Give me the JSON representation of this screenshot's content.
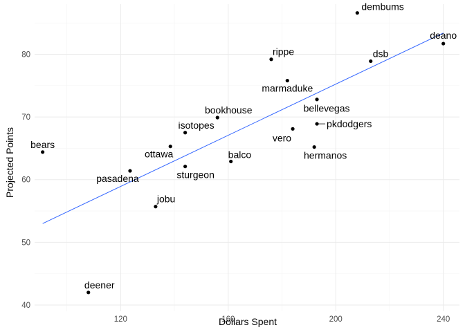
{
  "chart_data": {
    "type": "scatter",
    "title": "",
    "xlabel": "Dollars Spent",
    "ylabel": "Projected Points",
    "xlim": [
      88,
      246
    ],
    "ylim": [
      39,
      88
    ],
    "x_ticks": [
      120,
      160,
      200,
      240
    ],
    "y_ticks": [
      40,
      50,
      60,
      70,
      80
    ],
    "grid": true,
    "legend": "none",
    "trend_line": {
      "x": [
        91,
        240
      ],
      "y": [
        53.0,
        83.4
      ],
      "color": "#3366ff"
    },
    "points": [
      {
        "label": "dembums",
        "x": 208,
        "y": 86.6
      },
      {
        "label": "deano",
        "x": 240,
        "y": 81.7
      },
      {
        "label": "dsb",
        "x": 213,
        "y": 78.9
      },
      {
        "label": "rippe",
        "x": 176,
        "y": 79.2
      },
      {
        "label": "marmaduke",
        "x": 182,
        "y": 75.8
      },
      {
        "label": "bellevegas",
        "x": 193,
        "y": 72.8
      },
      {
        "label": "bookhouse",
        "x": 156,
        "y": 69.9
      },
      {
        "label": "pkdodgers",
        "x": 193,
        "y": 68.9
      },
      {
        "label": "vero",
        "x": 184,
        "y": 68.1
      },
      {
        "label": "isotopes",
        "x": 144,
        "y": 67.5
      },
      {
        "label": "hermanos",
        "x": 192,
        "y": 65.2
      },
      {
        "label": "ottawa",
        "x": 138.5,
        "y": 65.3
      },
      {
        "label": "bears",
        "x": 91,
        "y": 64.4
      },
      {
        "label": "balco",
        "x": 161,
        "y": 62.9
      },
      {
        "label": "sturgeon",
        "x": 144,
        "y": 62.1
      },
      {
        "label": "pasadena",
        "x": 123.5,
        "y": 61.4
      },
      {
        "label": "jobu",
        "x": 133,
        "y": 55.7
      },
      {
        "label": "deener",
        "x": 108,
        "y": 42.0
      }
    ]
  }
}
